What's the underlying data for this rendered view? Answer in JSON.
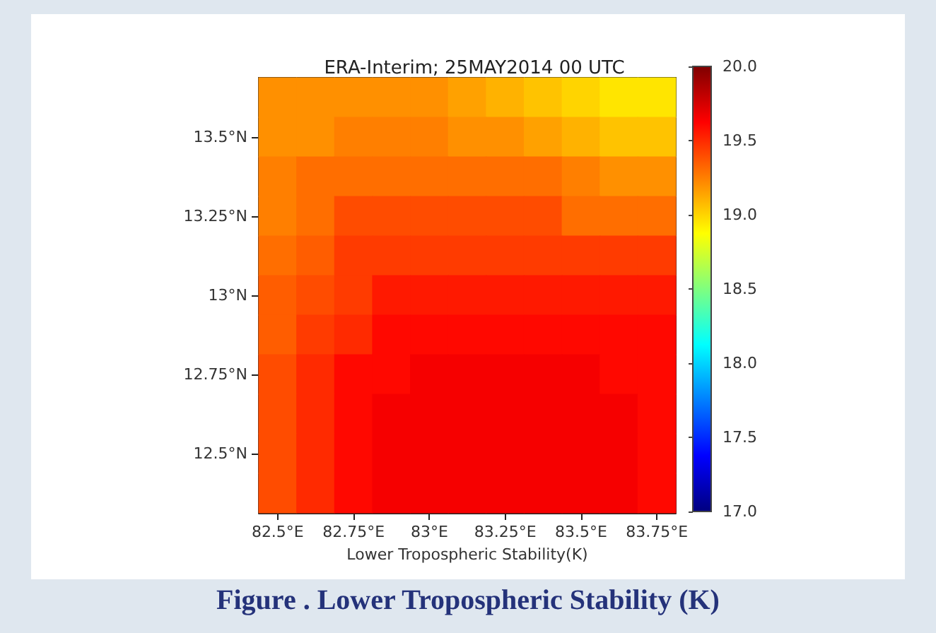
{
  "chart_data": {
    "type": "heatmap",
    "title": "ERA-Interim; 25MAY2014 00 UTC",
    "xlabel": "Lower Tropospheric Stability(K)",
    "annotations": [
      "Figure . Lower Tropospheric Stability (K)"
    ],
    "categories": [
      "82.5°E",
      null,
      "82.75°E",
      null,
      "83°E",
      null,
      "83.25°E",
      null,
      "83.5°E",
      null,
      "83.75°E"
    ],
    "y_categories": [
      null,
      "13.5°N",
      null,
      "13.25°N",
      null,
      "13°N",
      null,
      "12.75°N",
      null,
      "12.5°N",
      null
    ],
    "cells": [
      [
        19.2,
        19.2,
        19.2,
        19.2,
        19.2,
        19.15,
        19.1,
        19.05,
        19.0,
        18.95,
        18.95
      ],
      [
        19.2,
        19.2,
        19.25,
        19.25,
        19.25,
        19.2,
        19.2,
        19.15,
        19.1,
        19.05,
        19.05
      ],
      [
        19.25,
        19.3,
        19.3,
        19.3,
        19.3,
        19.3,
        19.3,
        19.3,
        19.25,
        19.2,
        19.2
      ],
      [
        19.25,
        19.3,
        19.4,
        19.4,
        19.4,
        19.4,
        19.4,
        19.4,
        19.3,
        19.3,
        19.3
      ],
      [
        19.3,
        19.35,
        19.45,
        19.45,
        19.45,
        19.45,
        19.45,
        19.45,
        19.45,
        19.45,
        19.45
      ],
      [
        19.35,
        19.4,
        19.45,
        19.55,
        19.55,
        19.55,
        19.55,
        19.55,
        19.55,
        19.55,
        19.55
      ],
      [
        19.35,
        19.45,
        19.5,
        19.6,
        19.6,
        19.6,
        19.6,
        19.6,
        19.6,
        19.6,
        19.6
      ],
      [
        19.4,
        19.5,
        19.6,
        19.6,
        19.65,
        19.65,
        19.65,
        19.65,
        19.65,
        19.6,
        19.6
      ],
      [
        19.4,
        19.5,
        19.6,
        19.65,
        19.65,
        19.65,
        19.65,
        19.65,
        19.65,
        19.65,
        19.6
      ],
      [
        19.4,
        19.5,
        19.6,
        19.65,
        19.65,
        19.65,
        19.65,
        19.65,
        19.65,
        19.65,
        19.6
      ],
      [
        19.4,
        19.5,
        19.6,
        19.65,
        19.65,
        19.65,
        19.65,
        19.65,
        19.65,
        19.65,
        19.6
      ]
    ],
    "clim": [
      17,
      20
    ],
    "cticks": [
      {
        "value": 17,
        "label": "17.0"
      },
      {
        "value": 17.5,
        "label": "17.5"
      },
      {
        "value": 18,
        "label": "18.0"
      },
      {
        "value": 18.5,
        "label": "18.5"
      },
      {
        "value": 19,
        "label": "19.0"
      },
      {
        "value": 19.5,
        "label": "19.5"
      },
      {
        "value": 20,
        "label": "20.0"
      }
    ]
  }
}
